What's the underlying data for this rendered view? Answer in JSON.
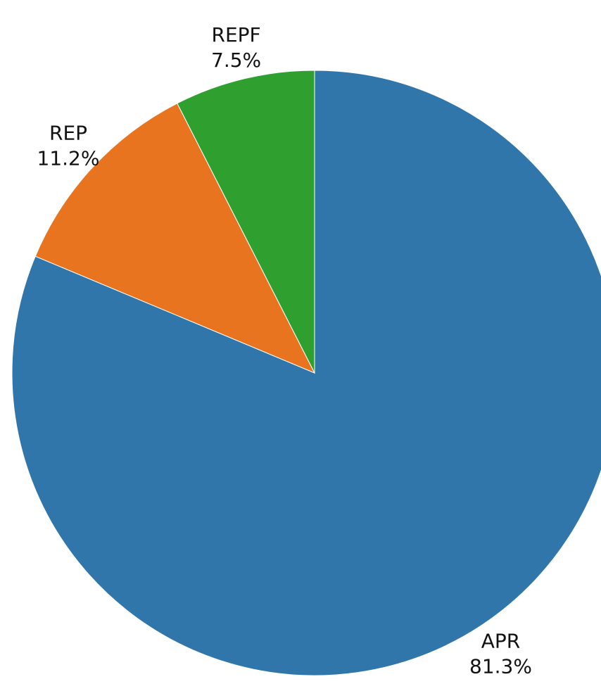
{
  "chart_data": {
    "type": "pie",
    "title": "",
    "slices": [
      {
        "label": "APR",
        "value": 81.3,
        "display": "81.3%",
        "color": "#3076ab"
      },
      {
        "label": "REP",
        "value": 11.2,
        "display": "11.2%",
        "color": "#e8741f"
      },
      {
        "label": "REPF",
        "value": 7.5,
        "display": "7.5%",
        "color": "#2f9f2f"
      }
    ],
    "start_angle": "top",
    "direction": "clockwise",
    "legend": "none"
  }
}
